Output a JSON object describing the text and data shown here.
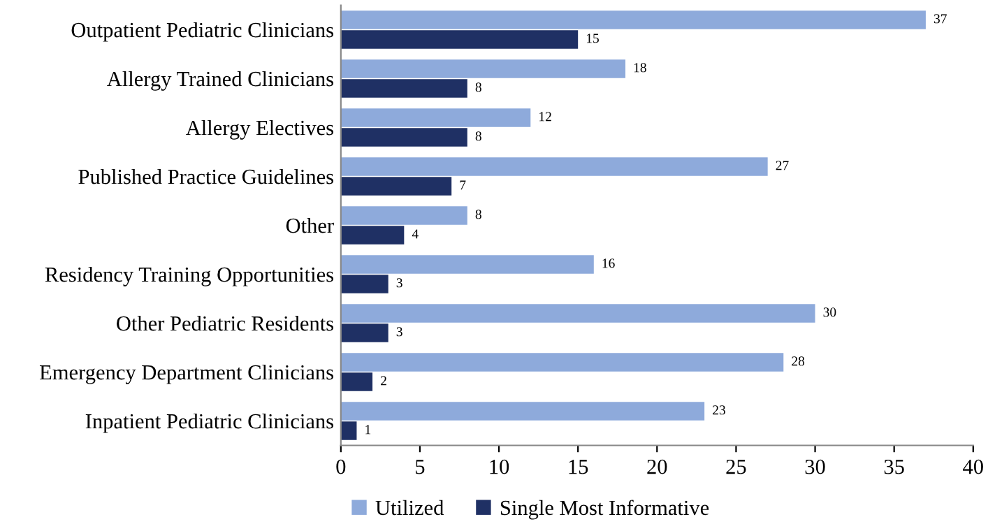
{
  "chart_data": {
    "type": "bar",
    "orientation": "horizontal",
    "categories": [
      "Outpatient Pediatric Clinicians",
      "Allergy Trained Clinicians",
      "Allergy Electives",
      "Published Practice Guidelines",
      "Other",
      "Residency Training Opportunities",
      "Other Pediatric Residents",
      "Emergency Department Clinicians",
      "Inpatient Pediatric Clinicians"
    ],
    "series": [
      {
        "name": "Utilized",
        "color": "#8eaadb",
        "values": [
          37,
          18,
          12,
          27,
          8,
          16,
          30,
          28,
          23
        ]
      },
      {
        "name": "Single Most Informative",
        "color": "#1f3064",
        "values": [
          15,
          8,
          8,
          7,
          4,
          3,
          3,
          2,
          1
        ]
      }
    ],
    "xlim": [
      0,
      40
    ],
    "xticks": [
      0,
      5,
      10,
      15,
      20,
      25,
      30,
      35,
      40
    ],
    "data_labels": true,
    "grid": false,
    "legend": "bottom"
  }
}
